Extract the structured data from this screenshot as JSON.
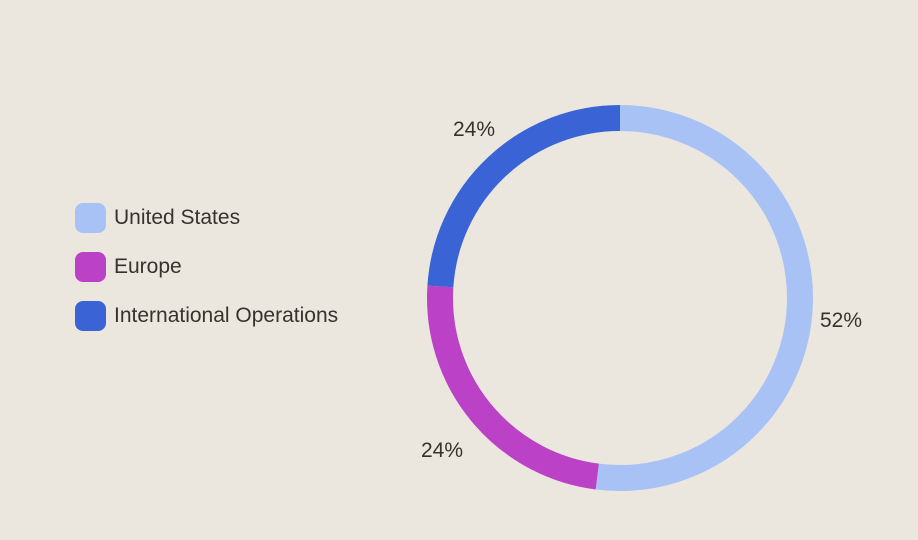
{
  "background": "#ebe7de",
  "text_color": "#35332e",
  "legend": {
    "items": [
      {
        "label": "United States",
        "color": "#a9c2f5"
      },
      {
        "label": "Europe",
        "color": "#bb42c7"
      },
      {
        "label": "International Operations",
        "color": "#3a63d6"
      }
    ]
  },
  "chart_data": {
    "type": "pie",
    "subtype": "donut",
    "labels": [
      "United States",
      "Europe",
      "International Operations"
    ],
    "values": [
      52,
      24,
      24
    ],
    "display_labels": [
      "52%",
      "24%",
      "24%"
    ],
    "colors": [
      "#a9c2f5",
      "#bb42c7",
      "#3a63d6"
    ],
    "direction": "clockwise",
    "start_angle": "top",
    "hole": 0.87,
    "legend_position": "left",
    "label_position": "outside"
  }
}
